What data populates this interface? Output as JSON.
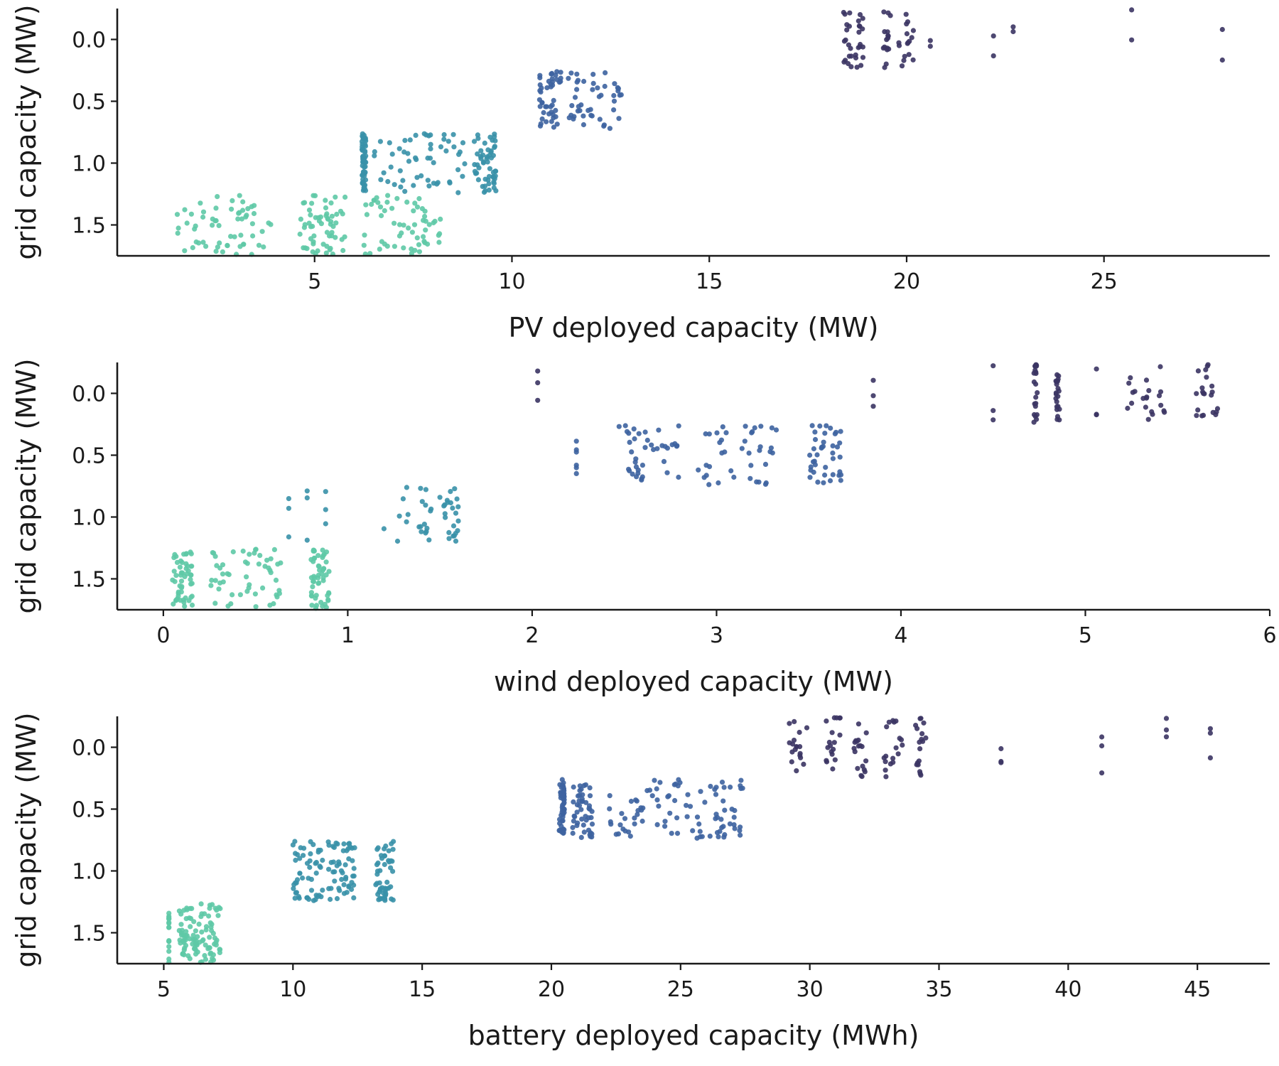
{
  "chart_data": [
    {
      "type": "scatter",
      "xlabel": "PV deployed capacity (MW)",
      "ylabel": "grid capacity (MW)",
      "xlim": [
        0,
        29.2
      ],
      "ylim": [
        1.75,
        -0.25
      ],
      "xticks": [
        5,
        10,
        15,
        20,
        25
      ],
      "yticks": [
        0.0,
        0.5,
        1.0,
        1.5
      ],
      "xtick_labels": [
        "5",
        "10",
        "15",
        "20",
        "25"
      ],
      "ytick_labels": [
        "0.0",
        "0.5",
        "1.0",
        "1.5"
      ],
      "series": [
        {
          "grid": 1.5,
          "color": "#5ec9a6",
          "x_clusters": [
            [
              1.5,
              3.9
            ],
            [
              4.6,
              5.8
            ],
            [
              6.2,
              8.2
            ]
          ],
          "n": 180
        },
        {
          "grid": 1.0,
          "color": "#3991a8",
          "x_clusters": [
            [
              6.2,
              6.3
            ],
            [
              6.5,
              8.9
            ],
            [
              9.0,
              9.6
            ]
          ],
          "n": 170
        },
        {
          "grid": 0.5,
          "color": "#3d63a0",
          "x_clusters": [
            [
              10.7,
              11.3
            ],
            [
              11.4,
              12.8
            ]
          ],
          "n": 90
        },
        {
          "grid": 0.0,
          "color": "#3b3463",
          "x_clusters": [
            [
              18.4,
              18.6
            ],
            [
              18.7,
              18.9
            ],
            [
              19.4,
              19.6
            ],
            [
              19.8,
              20.2
            ],
            [
              20.6
            ],
            [
              22.2
            ],
            [
              22.7
            ],
            [
              25.7
            ],
            [
              28.0
            ]
          ],
          "n": 150
        }
      ]
    },
    {
      "type": "scatter",
      "xlabel": "wind deployed capacity (MW)",
      "ylabel": "grid capacity (MW)",
      "xlim": [
        -0.25,
        6.0
      ],
      "ylim": [
        1.75,
        -0.25
      ],
      "xticks": [
        0,
        1,
        2,
        3,
        4,
        5,
        6
      ],
      "yticks": [
        0.0,
        0.5,
        1.0,
        1.5
      ],
      "xtick_labels": [
        "0",
        "1",
        "2",
        "3",
        "4",
        "5",
        "6"
      ],
      "ytick_labels": [
        "0.0",
        "0.5",
        "1.0",
        "1.5"
      ],
      "series": [
        {
          "grid": 1.5,
          "color": "#5ec9a6",
          "x_clusters": [
            [
              0.05,
              0.16
            ],
            [
              0.25,
              0.65
            ],
            [
              0.8,
              0.9
            ]
          ],
          "n": 160
        },
        {
          "grid": 1.0,
          "color": "#3991a8",
          "x_clusters": [
            [
              0.68
            ],
            [
              0.78
            ],
            [
              0.88
            ],
            [
              1.15,
              1.5
            ],
            [
              1.52,
              1.6
            ]
          ],
          "n": 110
        },
        {
          "grid": 0.5,
          "color": "#3d63a0",
          "x_clusters": [
            [
              2.24
            ],
            [
              2.47,
              2.8
            ],
            [
              2.88,
              3.35
            ],
            [
              3.5,
              3.68
            ]
          ],
          "n": 160
        },
        {
          "grid": 0.0,
          "color": "#3b3463",
          "x_clusters": [
            [
              2.03
            ],
            [
              3.85
            ],
            [
              4.5
            ],
            [
              4.72,
              4.74
            ],
            [
              4.84,
              4.86
            ],
            [
              5.06
            ],
            [
              5.2,
              5.45
            ],
            [
              5.6,
              5.72
            ]
          ],
          "n": 170
        }
      ]
    },
    {
      "type": "scatter",
      "xlabel": "battery deployed capacity (MWh)",
      "ylabel": "grid capacity (MW)",
      "xlim": [
        3.2,
        47.8
      ],
      "ylim": [
        1.75,
        -0.25
      ],
      "xticks": [
        5,
        10,
        15,
        20,
        25,
        30,
        35,
        40,
        45
      ],
      "yticks": [
        0.0,
        0.5,
        1.0,
        1.5
      ],
      "xtick_labels": [
        "5",
        "10",
        "15",
        "20",
        "25",
        "30",
        "35",
        "40",
        "45"
      ],
      "ytick_labels": [
        "0.0",
        "0.5",
        "1.0",
        "1.5"
      ],
      "series": [
        {
          "grid": 1.5,
          "color": "#5ec9a6",
          "x_clusters": [
            [
              5.2
            ],
            [
              5.6,
              7.2
            ]
          ],
          "n": 200
        },
        {
          "grid": 1.0,
          "color": "#3991a8",
          "x_clusters": [
            [
              10.0,
              11.2
            ],
            [
              11.3,
              12.4
            ],
            [
              13.2,
              13.9
            ]
          ],
          "n": 150
        },
        {
          "grid": 0.5,
          "color": "#3d63a0",
          "x_clusters": [
            [
              20.3,
              20.5
            ],
            [
              20.8,
              21.6
            ],
            [
              22.2,
              25.0
            ],
            [
              25.2,
              27.4
            ]
          ],
          "n": 190
        },
        {
          "grid": 0.0,
          "color": "#3b3463",
          "x_clusters": [
            [
              29.2,
              29.9
            ],
            [
              30.6,
              31.2
            ],
            [
              31.7,
              32.2
            ],
            [
              32.8,
              33.6
            ],
            [
              34.0,
              34.5
            ],
            [
              37.4
            ],
            [
              41.3
            ],
            [
              43.8
            ],
            [
              45.5
            ]
          ],
          "n": 170
        }
      ]
    }
  ]
}
